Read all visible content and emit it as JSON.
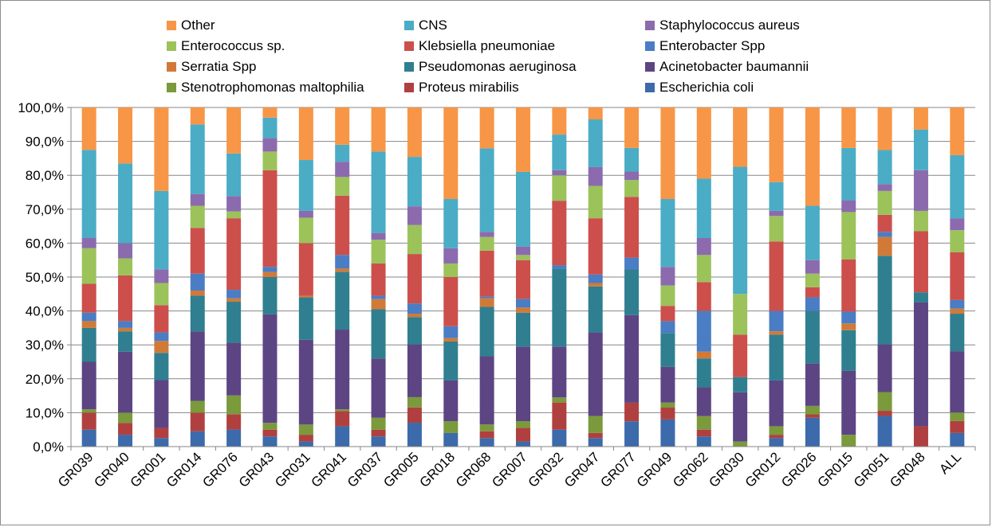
{
  "chart_data": {
    "type": "bar",
    "stacked": true,
    "percent": true,
    "categories": [
      "GR039",
      "GR040",
      "GR001",
      "GR014",
      "GR076",
      "GR043",
      "GR031",
      "GR041",
      "GR037",
      "GR005",
      "GR018",
      "GR068",
      "GR007",
      "GR032",
      "GR047",
      "GR077",
      "GR049",
      "GR062",
      "GR030",
      "GR012",
      "GR026",
      "GR015",
      "GR051",
      "GR048",
      "ALL"
    ],
    "ylim": [
      0,
      100
    ],
    "yticks": [
      "0,0%",
      "10,0%",
      "20,0%",
      "30,0%",
      "40,0%",
      "50,0%",
      "60,0%",
      "70,0%",
      "80,0%",
      "90,0%",
      "100,0%"
    ],
    "grid": true,
    "legend_position": "top",
    "series": [
      {
        "name": "Escherichia coli",
        "color": "#3c6aab",
        "values": [
          5,
          3.5,
          2.5,
          4.5,
          5,
          3,
          1.5,
          6,
          3,
          7,
          4,
          2.5,
          1.5,
          5,
          2.5,
          7.5,
          8,
          3,
          0,
          2.5,
          8.5,
          0,
          9,
          0,
          4
        ]
      },
      {
        "name": "Proteus mirabilis",
        "color": "#b0403f",
        "values": [
          5,
          3.5,
          3,
          5.5,
          4.5,
          2,
          2,
          4.5,
          2,
          4.5,
          0,
          2,
          4,
          8,
          1.5,
          5.5,
          3.5,
          2,
          0,
          1,
          1,
          0,
          1.5,
          6,
          3.5
        ]
      },
      {
        "name": "Stenotrophomonas maltophilia",
        "color": "#7a9a3c",
        "values": [
          1,
          3,
          0,
          3.5,
          5.5,
          2,
          3,
          0.5,
          3.5,
          3,
          3.5,
          2,
          2,
          1.5,
          5,
          0,
          1.5,
          4,
          1.5,
          2.5,
          2.5,
          3.5,
          5.5,
          0,
          2.5
        ]
      },
      {
        "name": "Acinetobacter baumannii",
        "color": "#5d4584",
        "values": [
          14,
          18,
          14,
          20.5,
          15.5,
          32,
          25,
          23.5,
          17.5,
          15.5,
          12,
          20,
          22,
          15,
          24.5,
          26,
          10.5,
          8.5,
          14.5,
          13.5,
          12.5,
          19,
          14,
          36.5,
          18
        ]
      },
      {
        "name": "Pseudomonas aeruginosa",
        "color": "#2f7f90",
        "values": [
          10,
          6,
          8,
          10.5,
          12,
          11,
          12.5,
          17,
          14.5,
          8,
          11.5,
          14.5,
          10,
          23,
          13.5,
          13.5,
          10,
          8.5,
          4.5,
          13.5,
          15.5,
          12,
          26,
          3,
          11
        ]
      },
      {
        "name": "Serratia Spp",
        "color": "#d17a37",
        "values": [
          2,
          1,
          3.5,
          1.5,
          1,
          1.5,
          0.5,
          1,
          3,
          1,
          1,
          2.5,
          1.5,
          0,
          1,
          0,
          0,
          2,
          0,
          1,
          0,
          2,
          5.5,
          0,
          1.5
        ]
      },
      {
        "name": "Enterobacter Spp",
        "color": "#4a7dc4",
        "values": [
          2.5,
          2,
          2.5,
          5,
          2.5,
          1.5,
          0,
          4,
          1,
          3,
          3.5,
          0.5,
          2.5,
          1,
          2.5,
          3.5,
          3.5,
          12,
          0,
          6,
          4,
          3.5,
          1.5,
          0,
          2.5
        ]
      },
      {
        "name": "Klebsiella pneumoniae",
        "color": "#cc4f4c",
        "values": [
          8.5,
          13.5,
          8,
          13.5,
          21,
          28.5,
          15.5,
          17.5,
          9.5,
          14.5,
          14.5,
          13.5,
          11.5,
          19,
          16.5,
          18,
          4.5,
          8.5,
          12.5,
          20.5,
          3,
          15.5,
          5,
          18,
          14
        ]
      },
      {
        "name": "Enterococcus sp.",
        "color": "#9bc35a",
        "values": [
          10.5,
          5,
          6.5,
          6.5,
          2,
          5.5,
          7.5,
          5.5,
          7,
          8.5,
          4,
          4,
          1.5,
          7.5,
          9.5,
          5,
          6,
          8,
          12,
          7.5,
          4,
          14,
          7,
          6,
          6.5
        ]
      },
      {
        "name": "Staphylococcus aureus",
        "color": "#8b6bae",
        "values": [
          3,
          4.5,
          4,
          3.5,
          4.5,
          4,
          2,
          4.5,
          2,
          5.5,
          4.5,
          1.5,
          2.5,
          1.5,
          5.5,
          2.5,
          5.5,
          5,
          0,
          1.5,
          4,
          3.5,
          2,
          12,
          3.5
        ]
      },
      {
        "name": "CNS",
        "color": "#4bacc6",
        "values": [
          26,
          23.5,
          23,
          20.5,
          12.5,
          6,
          15,
          5,
          24,
          14.5,
          14.5,
          24.5,
          22,
          10.5,
          14,
          7,
          20,
          17.5,
          37.5,
          8.5,
          16,
          15.5,
          10,
          12,
          18.5
        ]
      },
      {
        "name": "Other",
        "color": "#f79646",
        "values": [
          12.5,
          16.5,
          24.5,
          5,
          13.5,
          3,
          15.5,
          11,
          13,
          14.5,
          27,
          12,
          19,
          8,
          3.5,
          12,
          27,
          21,
          17.5,
          22,
          29,
          12,
          12.5,
          6.5,
          14
        ]
      }
    ],
    "legend_order": [
      "Other",
      "CNS",
      "Staphylococcus aureus",
      "Enterococcus sp.",
      "Klebsiella pneumoniae",
      "Enterobacter Spp",
      "Serratia Spp",
      "Pseudomonas aeruginosa",
      "Acinetobacter baumannii",
      "Stenotrophomonas maltophilia",
      "Proteus mirabilis",
      "Escherichia coli"
    ]
  }
}
